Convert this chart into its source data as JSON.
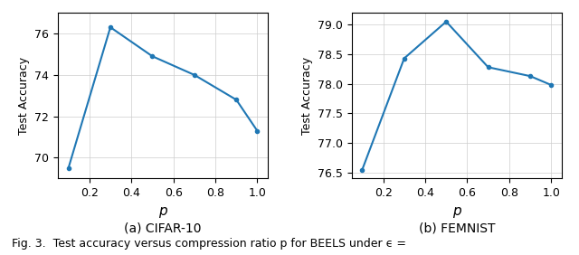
{
  "cifar10": {
    "x": [
      0.1,
      0.3,
      0.5,
      0.7,
      0.9,
      1.0
    ],
    "y": [
      69.5,
      76.3,
      74.9,
      74.0,
      72.8,
      71.3
    ],
    "xlabel": "p",
    "ylabel": "Test Accuracy",
    "title": "(a) CIFAR-10",
    "ylim": [
      69.0,
      77.0
    ],
    "yticks": [
      70,
      72,
      74,
      76
    ]
  },
  "femnist": {
    "x": [
      0.1,
      0.3,
      0.5,
      0.7,
      0.9,
      1.0
    ],
    "y": [
      76.55,
      78.43,
      79.05,
      78.28,
      78.13,
      77.98
    ],
    "xlabel": "p",
    "ylabel": "Test Accuracy",
    "title": "(b) FEMNIST",
    "ylim": [
      76.4,
      79.2
    ],
    "yticks": [
      76.5,
      77.0,
      77.5,
      78.0,
      78.5,
      79.0
    ]
  },
  "line_color": "#1f77b4",
  "marker": ".",
  "marker_size": 6,
  "line_width": 1.5,
  "fig_caption": "Fig. 3.  Test accuracy versus compression ratio p for BEELS under ϵ =",
  "background_color": "white",
  "grid_color": "#cccccc",
  "grid_alpha": 0.8,
  "caption_fontsize": 10,
  "fig_caption_fontsize": 9
}
